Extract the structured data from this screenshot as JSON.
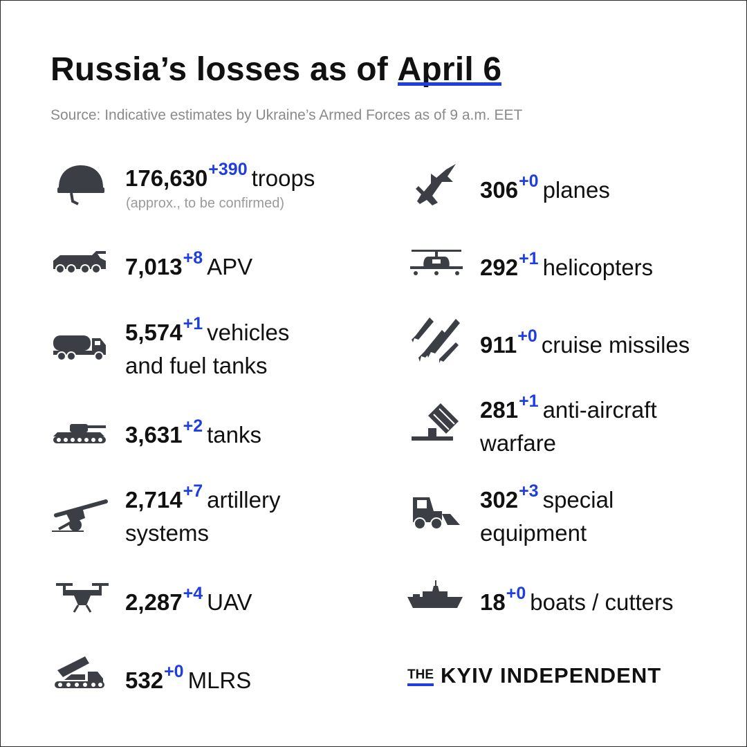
{
  "header": {
    "title_prefix": "Russia’s losses as of",
    "title_date": "April 6",
    "source": "Source: Indicative estimates by Ukraine’s Armed Forces as of 9 a.m. EET"
  },
  "left": [
    {
      "icon": "helmet-icon",
      "value": "176,630",
      "delta": "+390",
      "label": "troops",
      "label2": "",
      "note": "(approx., to be confirmed)"
    },
    {
      "icon": "apv-icon",
      "value": "7,013",
      "delta": "+8",
      "label": "APV",
      "label2": ""
    },
    {
      "icon": "fuel-truck-icon",
      "value": "5,574",
      "delta": "+1",
      "label": "vehicles",
      "label2": "and fuel tanks"
    },
    {
      "icon": "tank-icon",
      "value": "3,631",
      "delta": "+2",
      "label": "tanks",
      "label2": ""
    },
    {
      "icon": "artillery-icon",
      "value": "2,714",
      "delta": "+7",
      "label": "artillery",
      "label2": "systems"
    },
    {
      "icon": "drone-icon",
      "value": "2,287",
      "delta": "+4",
      "label": "UAV",
      "label2": ""
    },
    {
      "icon": "mlrs-icon",
      "value": "532",
      "delta": "+0",
      "label": "MLRS",
      "label2": ""
    }
  ],
  "right": [
    {
      "icon": "jet-icon",
      "value": "306",
      "delta": "+0",
      "label": "planes",
      "label2": ""
    },
    {
      "icon": "helicopter-icon",
      "value": "292",
      "delta": "+1",
      "label": "helicopters",
      "label2": ""
    },
    {
      "icon": "missiles-icon",
      "value": "911",
      "delta": "+0",
      "label": "cruise missiles",
      "label2": ""
    },
    {
      "icon": "anti-aircraft-icon",
      "value": "281",
      "delta": "+1",
      "label": "anti-aircraft",
      "label2": "warfare"
    },
    {
      "icon": "special-equipment-icon",
      "value": "302",
      "delta": "+3",
      "label": "special",
      "label2": "equipment"
    },
    {
      "icon": "ship-icon",
      "value": "18",
      "delta": "+0",
      "label": "boats / cutters",
      "label2": ""
    }
  ],
  "logo": {
    "the": "THE",
    "name": "KYIV INDEPENDENT"
  },
  "colors": {
    "accent": "#1f3ee0",
    "icon": "#3b3f45",
    "text": "#111111",
    "muted": "#8a8a8a"
  }
}
